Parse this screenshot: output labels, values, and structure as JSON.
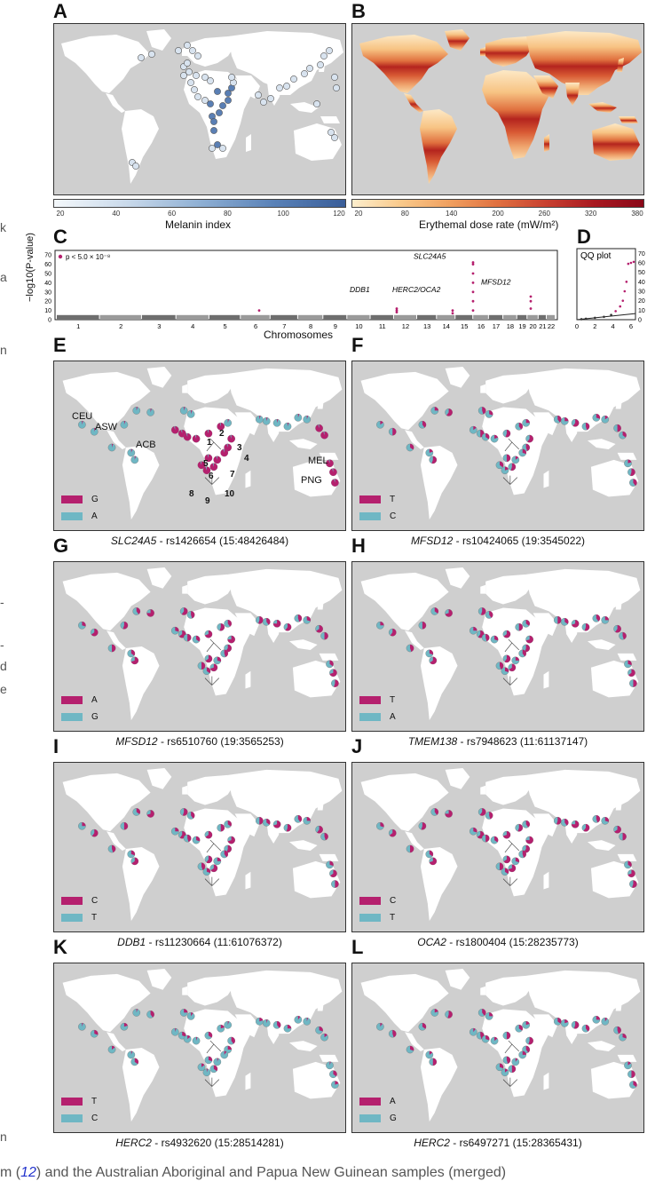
{
  "panels": {
    "A": {
      "label": "A",
      "colorbar_ticks": [
        "20",
        "40",
        "60",
        "80",
        "100",
        "120"
      ],
      "colorbar_title": "Melanin index"
    },
    "B": {
      "label": "B",
      "colorbar_ticks": [
        "20",
        "80",
        "140",
        "200",
        "260",
        "320",
        "380"
      ],
      "colorbar_title": "Erythemal dose rate (mW/m²)"
    },
    "C": {
      "label": "C",
      "legend": "p < 5.0 × 10⁻⁸",
      "ylabel": "−log10(P-value)",
      "xlabel": "Chromosomes",
      "yticks": [
        "0",
        "10",
        "20",
        "30",
        "40",
        "50",
        "60",
        "70"
      ],
      "chromosomes": [
        "1",
        "2",
        "3",
        "4",
        "5",
        "6",
        "7",
        "8",
        "9",
        "10",
        "11",
        "12",
        "13",
        "14",
        "15",
        "16",
        "17",
        "18",
        "19",
        "20",
        "21",
        "22"
      ],
      "annotations": [
        "SLC24A5",
        "DDB1",
        "HERC2/OCA2",
        "MFSD12"
      ]
    },
    "D": {
      "label": "D",
      "title": "QQ plot",
      "yticks": [
        "0",
        "10",
        "20",
        "30",
        "40",
        "50",
        "60",
        "70"
      ],
      "xticks": [
        "0",
        "2",
        "4",
        "6"
      ]
    },
    "E": {
      "label": "E",
      "caption_gene": "SLC24A5",
      "caption_rest": " - rs1426654 (15:48426484)",
      "allele1": "G",
      "allele2": "A",
      "pops": [
        "CEU",
        "ASW",
        "ACB",
        "MEL",
        "PNG"
      ],
      "nums": [
        "1",
        "2",
        "3",
        "4",
        "5",
        "6",
        "7",
        "8",
        "9",
        "10"
      ]
    },
    "F": {
      "label": "F",
      "caption_gene": "MFSD12",
      "caption_rest": " - rs10424065 (19:3545022)",
      "allele1": "T",
      "allele2": "C"
    },
    "G": {
      "label": "G",
      "caption_gene": "MFSD12",
      "caption_rest": " - rs6510760 (19:3565253)",
      "allele1": "A",
      "allele2": "G"
    },
    "H": {
      "label": "H",
      "caption_gene": "TMEM138",
      "caption_rest": " - rs7948623 (11:61137147)",
      "allele1": "T",
      "allele2": "A"
    },
    "I": {
      "label": "I",
      "caption_gene": "DDB1",
      "caption_rest": " - rs11230664 (11:61076372)",
      "allele1": "C",
      "allele2": "T"
    },
    "J": {
      "label": "J",
      "caption_gene": "OCA2",
      "caption_rest": " - rs1800404 (15:28235773)",
      "allele1": "C",
      "allele2": "T"
    },
    "K": {
      "label": "K",
      "caption_gene": "HERC2",
      "caption_rest": " - rs4932620 (15:28514281)",
      "allele1": "T",
      "allele2": "C"
    },
    "L": {
      "label": "L",
      "caption_gene": "HERC2",
      "caption_rest": " - rs6497271 (15:28365431)",
      "allele1": "A",
      "allele2": "G"
    }
  },
  "colors": {
    "magenta": "#b5206e",
    "teal": "#6fb7c4",
    "land": "#ffffff",
    "ocean": "#cfcfcf"
  },
  "page_edge": {
    "left_fragments": [
      "k",
      "a",
      "n",
      "-",
      "-",
      "d",
      "e",
      "n"
    ],
    "bottom_prefix": "m (",
    "bottom_ref": "12",
    "bottom_suffix": ") and the Australian Aboriginal and Papua New Guinean samples (merged)"
  }
}
